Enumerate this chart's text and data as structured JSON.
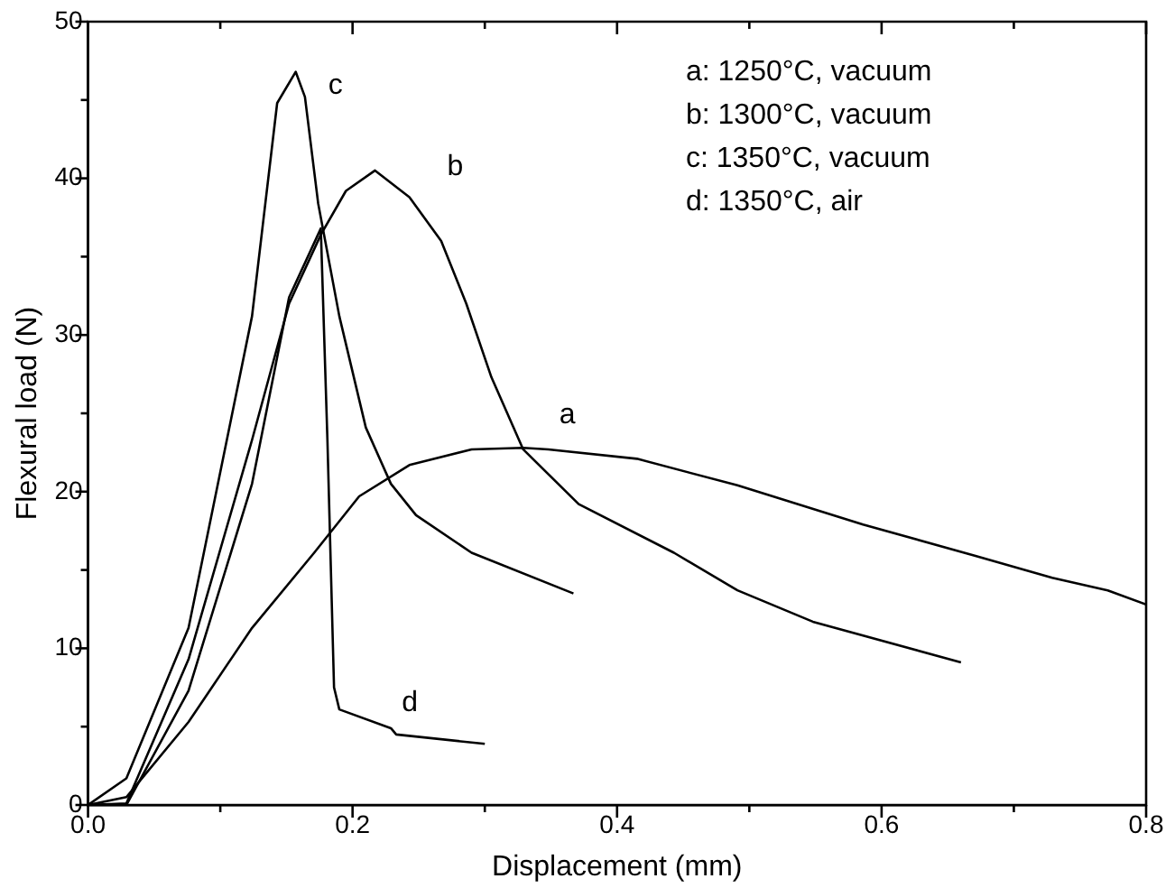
{
  "chart_data": {
    "type": "line",
    "xlabel": "Displacement (mm)",
    "ylabel": "Flexural load (N)",
    "xlim": [
      0,
      0.8
    ],
    "xticks": [
      {
        "value": 0,
        "label": "0.0"
      },
      {
        "value": 0.1,
        "label": null
      },
      {
        "value": 0.2,
        "label": "0.2"
      },
      {
        "value": 0.3,
        "label": null
      },
      {
        "value": 0.4,
        "label": "0.4"
      },
      {
        "value": 0.5,
        "label": null
      },
      {
        "value": 0.6,
        "label": "0.6"
      },
      {
        "value": 0.7,
        "label": null
      },
      {
        "value": 0.8,
        "label": "0.8"
      }
    ],
    "ylim": [
      0,
      50
    ],
    "yticks": [
      0,
      {
        "value": 5,
        "label": null
      },
      10,
      {
        "value": 15,
        "label": null
      },
      20,
      {
        "value": 25,
        "label": null
      },
      30,
      {
        "value": 35,
        "label": null
      },
      40,
      {
        "value": 45,
        "label": null
      },
      50
    ],
    "grid": false,
    "legend": false,
    "marker": "none",
    "line_style": "solid",
    "series": [
      {
        "name": "a",
        "color": "#000000",
        "x": [
          0,
          0.029,
          0.076,
          0.124,
          0.171,
          0.205,
          0.243,
          0.29,
          0.329,
          0.348,
          0.415,
          0.491,
          0.586,
          0.671,
          0.729,
          0.771,
          0.8
        ],
        "values": [
          0,
          0.5,
          5.3,
          11.3,
          16.1,
          19.7,
          21.7,
          22.7,
          22.8,
          22.7,
          22.1,
          20.4,
          17.9,
          15.9,
          14.5,
          13.7,
          12.8
        ]
      },
      {
        "name": "b",
        "color": "#000000",
        "x": [
          0,
          0.029,
          0.076,
          0.124,
          0.152,
          0.176,
          0.195,
          0.217,
          0.243,
          0.267,
          0.286,
          0.305,
          0.329,
          0.371,
          0.443,
          0.491,
          0.548,
          0.66
        ],
        "values": [
          0,
          0.1,
          9.3,
          23.3,
          32,
          36.4,
          39.2,
          40.5,
          38.8,
          36,
          32,
          27.3,
          22.7,
          19.2,
          16.1,
          13.7,
          11.7,
          9.1
        ]
      },
      {
        "name": "c",
        "color": "#000000",
        "x": [
          0,
          0.029,
          0.076,
          0.124,
          0.143,
          0.157,
          0.164,
          0.174,
          0.19,
          0.21,
          0.229,
          0.248,
          0.29,
          0.367
        ],
        "values": [
          0,
          1.7,
          11.3,
          31.2,
          44.8,
          46.8,
          45.2,
          38.4,
          31.2,
          24.1,
          20.5,
          18.5,
          16.1,
          13.5
        ]
      },
      {
        "name": "d",
        "color": "#000000",
        "x": [
          0,
          0.029,
          0.076,
          0.124,
          0.152,
          0.176,
          0.181,
          0.186,
          0.19,
          0.229,
          0.233,
          0.3
        ],
        "values": [
          0,
          0,
          7.3,
          20.5,
          32.4,
          36.8,
          23.3,
          7.5,
          6.1,
          4.9,
          4.5,
          3.9
        ]
      }
    ],
    "annotations": [
      "a: 1250°C, vacuum",
      "b: 1300°C, vacuum",
      "c: 1350°C, vacuum",
      "d: 1350°C, air"
    ]
  }
}
